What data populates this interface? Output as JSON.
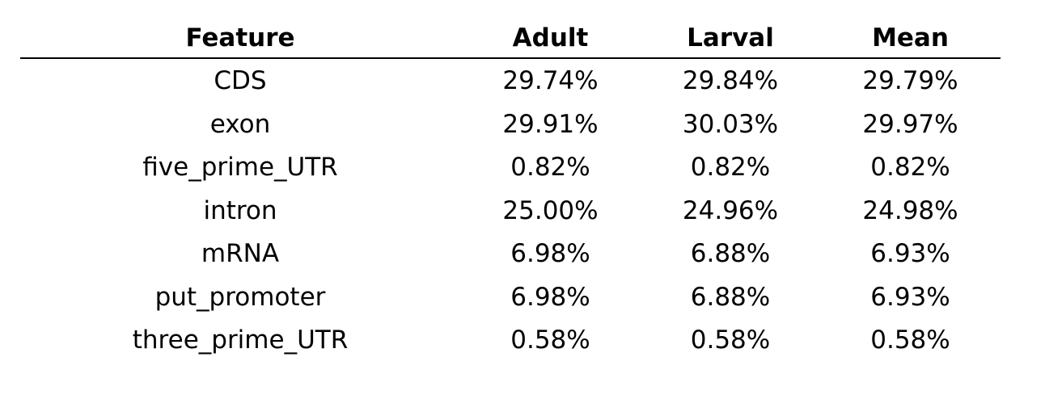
{
  "table": {
    "headers": [
      "Feature",
      "Adult",
      "Larval",
      "Mean"
    ],
    "rows": [
      [
        "CDS",
        "29.74%",
        "29.84%",
        "29.79%"
      ],
      [
        "exon",
        "29.91%",
        "30.03%",
        "29.97%"
      ],
      [
        "five_prime_UTR",
        "0.82%",
        "0.82%",
        "0.82%"
      ],
      [
        "intron",
        "25.00%",
        "24.96%",
        "24.98%"
      ],
      [
        "mRNA",
        "6.98%",
        "6.88%",
        "6.93%"
      ],
      [
        "put_promoter",
        "6.98%",
        "6.88%",
        "6.93%"
      ],
      [
        "three_prime_UTR",
        "0.58%",
        "0.58%",
        "0.58%"
      ]
    ]
  }
}
